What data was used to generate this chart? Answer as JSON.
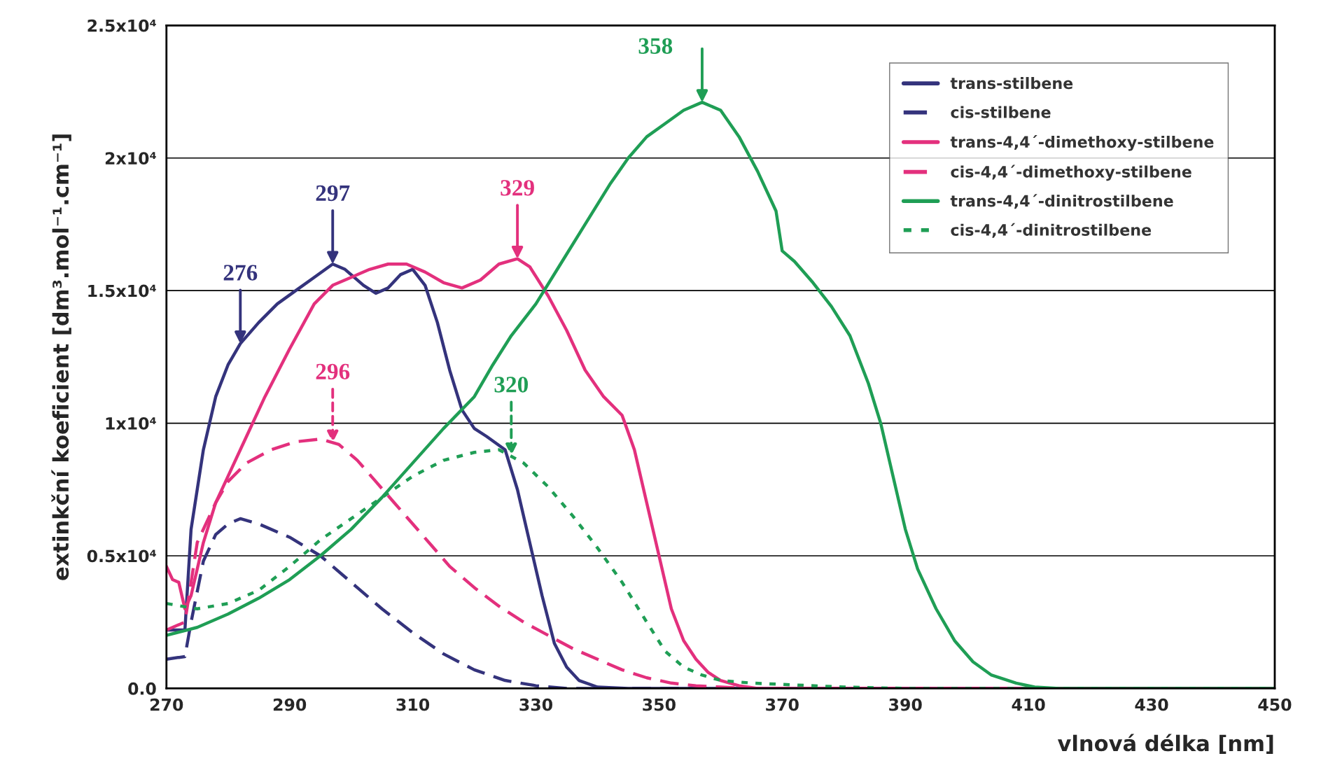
{
  "chart_data": {
    "type": "line",
    "xlabel": "vlnová délka [nm]",
    "ylabel": "extinkční koeficient [dm³.mol⁻¹.cm⁻¹]",
    "xlim": [
      270,
      450
    ],
    "xticks": [
      270,
      290,
      310,
      330,
      350,
      370,
      390,
      410,
      430,
      450
    ],
    "ylim": [
      0,
      25000
    ],
    "yticks": [
      {
        "value": 0,
        "label": "0.0"
      },
      {
        "value": 5000,
        "label": "0.5x10⁴"
      },
      {
        "value": 10000,
        "label": "1x10⁴"
      },
      {
        "value": 15000,
        "label": "1.5x10⁴"
      },
      {
        "value": 20000,
        "label": "2x10⁴"
      },
      {
        "value": 25000,
        "label": "2.5x10⁴"
      }
    ],
    "grid": "y",
    "legend": "top right",
    "marker": "none",
    "series": [
      {
        "name": "trans-stilbene",
        "color": "#34337c",
        "line_style": "solid",
        "x": [
          270,
          273,
          274,
          276,
          278,
          280,
          282,
          285,
          288,
          291,
          294,
          297,
          299,
          302,
          304,
          306,
          308,
          310,
          312,
          314,
          316,
          318,
          320,
          322,
          325,
          327,
          329,
          331,
          333,
          335,
          337,
          340,
          345,
          450
        ],
        "values": [
          2200,
          2200,
          6000,
          9000,
          11000,
          12200,
          13000,
          13800,
          14500,
          15000,
          15500,
          16000,
          15800,
          15200,
          14900,
          15100,
          15600,
          15800,
          15200,
          13800,
          12000,
          10500,
          9800,
          9500,
          9000,
          7500,
          5500,
          3500,
          1700,
          800,
          300,
          50,
          0,
          0
        ]
      },
      {
        "name": "cis-stilbene",
        "color": "#34337c",
        "line_style": "dashed",
        "x": [
          270,
          273,
          274,
          276,
          278,
          280,
          282,
          285,
          290,
          295,
          300,
          305,
          310,
          315,
          320,
          325,
          330,
          335,
          450
        ],
        "values": [
          1100,
          1200,
          2500,
          4800,
          5800,
          6200,
          6400,
          6200,
          5700,
          5000,
          4000,
          3000,
          2100,
          1300,
          700,
          300,
          100,
          0,
          0
        ]
      },
      {
        "name": "trans-4,4´-dimethoxy-stilbene",
        "color": "#e3307d",
        "line_style": "solid",
        "x": [
          270,
          271,
          272,
          273,
          274,
          276,
          278,
          280,
          283,
          286,
          290,
          294,
          297,
          300,
          303,
          306,
          309,
          312,
          315,
          318,
          321,
          324,
          327,
          329,
          332,
          335,
          338,
          341,
          344,
          346,
          348,
          350,
          352,
          354,
          356,
          358,
          360,
          363,
          366,
          450
        ],
        "values": [
          4600,
          4100,
          4000,
          3000,
          3500,
          5500,
          7000,
          8000,
          9500,
          11000,
          12800,
          14500,
          15200,
          15500,
          15800,
          16000,
          16000,
          15700,
          15300,
          15100,
          15400,
          16000,
          16200,
          15900,
          14800,
          13500,
          12000,
          11000,
          10300,
          9000,
          7000,
          5000,
          3000,
          1800,
          1100,
          600,
          300,
          100,
          0,
          0
        ]
      },
      {
        "name": "cis-4,4´-dimethoxy-stilbene",
        "color": "#e3307d",
        "line_style": "dashed",
        "x": [
          270,
          273,
          275,
          278,
          280,
          283,
          287,
          291,
          295,
          298,
          301,
          304,
          307,
          310,
          313,
          316,
          320,
          324,
          328,
          332,
          336,
          340,
          344,
          348,
          352,
          356,
          360,
          365,
          450
        ],
        "values": [
          2200,
          2500,
          5500,
          7000,
          7800,
          8500,
          9000,
          9300,
          9400,
          9200,
          8600,
          7800,
          7000,
          6200,
          5400,
          4600,
          3800,
          3100,
          2500,
          2000,
          1500,
          1100,
          700,
          400,
          200,
          100,
          50,
          0,
          0
        ]
      },
      {
        "name": "trans-4,4´-dinitrostilbene",
        "color": "#1f9e55",
        "line_style": "solid",
        "x": [
          270,
          275,
          280,
          285,
          290,
          295,
          300,
          305,
          310,
          315,
          320,
          323,
          326,
          330,
          334,
          338,
          342,
          345,
          348,
          351,
          354,
          357,
          360,
          363,
          366,
          368,
          369,
          370,
          372,
          375,
          378,
          381,
          384,
          386,
          388,
          390,
          392,
          395,
          398,
          401,
          404,
          408,
          411,
          415,
          450
        ],
        "values": [
          2000,
          2300,
          2800,
          3400,
          4100,
          5000,
          6000,
          7200,
          8500,
          9800,
          11000,
          12200,
          13300,
          14500,
          16000,
          17500,
          19000,
          20000,
          20800,
          21300,
          21800,
          22100,
          21800,
          20800,
          19500,
          18500,
          18000,
          16500,
          16100,
          15300,
          14400,
          13300,
          11500,
          10000,
          8000,
          6000,
          4500,
          3000,
          1800,
          1000,
          500,
          200,
          50,
          0,
          0
        ]
      },
      {
        "name": "cis-4,4´-dinitrostilbene",
        "color": "#1f9e55",
        "line_style": "dotted",
        "x": [
          270,
          275,
          280,
          285,
          290,
          295,
          300,
          305,
          310,
          315,
          320,
          324,
          328,
          332,
          336,
          340,
          344,
          348,
          351,
          354,
          357,
          360,
          365,
          370,
          380,
          390,
          450
        ],
        "values": [
          3200,
          3000,
          3200,
          3700,
          4600,
          5600,
          6400,
          7200,
          8000,
          8600,
          8900,
          9000,
          8500,
          7600,
          6500,
          5300,
          4000,
          2500,
          1400,
          800,
          500,
          300,
          200,
          150,
          50,
          0,
          0
        ]
      }
    ],
    "annotations": [
      {
        "text": "276",
        "x": 282,
        "y": 13000
      },
      {
        "text": "297",
        "x": 297,
        "y": 16000
      },
      {
        "text": "296",
        "x": 297,
        "y": 9270
      },
      {
        "text": "329",
        "x": 327,
        "y": 16200
      },
      {
        "text": "320",
        "x": 326,
        "y": 8780
      },
      {
        "text": "358",
        "x": 357,
        "y": 22100
      }
    ]
  }
}
